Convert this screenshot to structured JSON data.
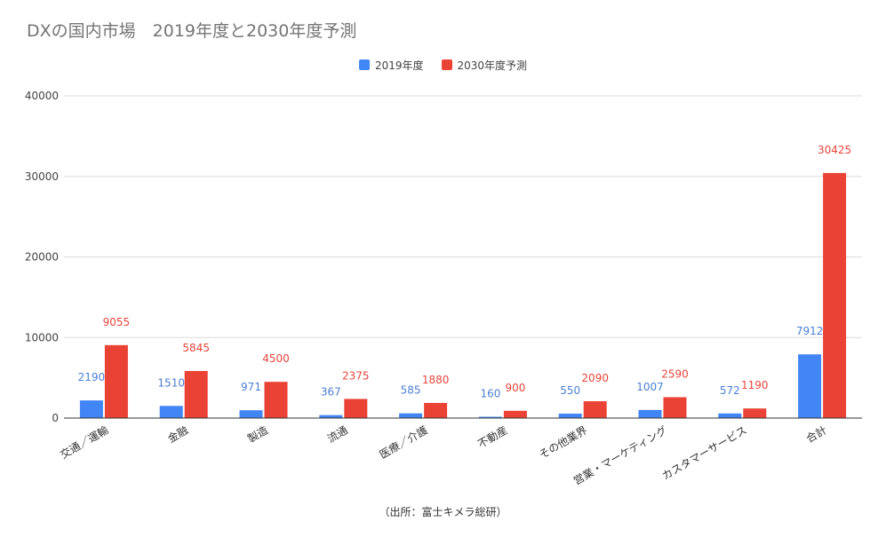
{
  "chart_data": {
    "type": "bar",
    "title": "DXの国内市場　2019年度と2030年度予測",
    "categories": [
      "交通／運輸",
      "金融",
      "製造",
      "流通",
      "医療／介護",
      "不動産",
      "その他業界",
      "営業・マーケティング",
      "カスタマーサービス",
      "合計"
    ],
    "series": [
      {
        "name": "2019年度",
        "color": "#4285f4",
        "label_color": "#4a7fd6",
        "values": [
          2190,
          1510,
          971,
          367,
          585,
          160,
          550,
          1007,
          572,
          7912
        ]
      },
      {
        "name": "2030年度予測",
        "color": "#ea4335",
        "label_color": "#e8453c",
        "values": [
          9055,
          5845,
          4500,
          2375,
          1880,
          900,
          2090,
          2590,
          1190,
          30425
        ]
      }
    ],
    "ylim": [
      0,
      40000
    ],
    "yticks": [
      "0",
      "10000",
      "20000",
      "30000",
      "40000"
    ],
    "grid": true,
    "legend_position": "top-center",
    "source": "（出所：富士キメラ総研）"
  }
}
